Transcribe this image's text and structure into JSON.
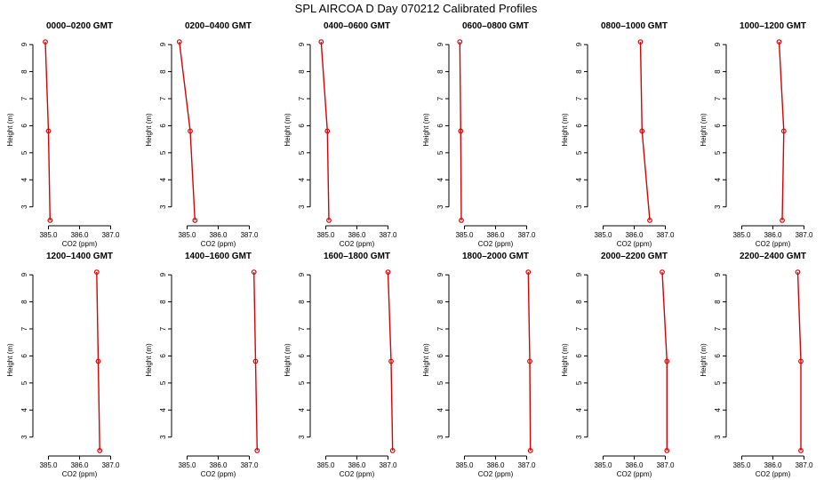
{
  "figure_title": "SPL AIRCOA D  Day 070212  Calibrated Profiles",
  "colors": {
    "profile_line": "#dd0000",
    "profile_marker": "#dd0000",
    "axis": "#000000"
  },
  "chart_data": [
    {
      "type": "line",
      "title": "0000–0200 GMT",
      "xlabel": "CO2 (ppm)",
      "ylabel": "Height (m)",
      "xlim": [
        384.5,
        387.5
      ],
      "ylim": [
        2.3,
        9.4
      ],
      "series": [
        {
          "x": [
            384.9,
            385.0,
            385.05
          ],
          "y": [
            9.1,
            5.8,
            2.5
          ]
        }
      ]
    },
    {
      "type": "line",
      "title": "0200–0400 GMT",
      "xlabel": "CO2 (ppm)",
      "ylabel": "Height (m)",
      "xlim": [
        384.5,
        387.5
      ],
      "ylim": [
        2.3,
        9.4
      ],
      "series": [
        {
          "x": [
            384.75,
            385.1,
            385.25
          ],
          "y": [
            9.1,
            5.8,
            2.5
          ]
        }
      ]
    },
    {
      "type": "line",
      "title": "0400–0600 GMT",
      "xlabel": "CO2 (ppm)",
      "ylabel": "Height (m)",
      "xlim": [
        384.5,
        387.5
      ],
      "ylim": [
        2.3,
        9.4
      ],
      "series": [
        {
          "x": [
            384.85,
            385.05,
            385.1
          ],
          "y": [
            9.1,
            5.8,
            2.5
          ]
        }
      ]
    },
    {
      "type": "line",
      "title": "0600–0800 GMT",
      "xlabel": "CO2 (ppm)",
      "ylabel": "Height (m)",
      "xlim": [
        384.5,
        387.5
      ],
      "ylim": [
        2.3,
        9.4
      ],
      "series": [
        {
          "x": [
            384.85,
            384.88,
            384.9
          ],
          "y": [
            9.1,
            5.8,
            2.5
          ]
        }
      ]
    },
    {
      "type": "line",
      "title": "0800–1000 GMT",
      "xlabel": "CO2 (ppm)",
      "ylabel": "Height (m)",
      "xlim": [
        384.5,
        387.5
      ],
      "ylim": [
        2.3,
        9.4
      ],
      "series": [
        {
          "x": [
            386.2,
            386.25,
            386.5
          ],
          "y": [
            9.1,
            5.8,
            2.5
          ]
        }
      ]
    },
    {
      "type": "line",
      "title": "1000–1200 GMT",
      "xlabel": "CO2 (ppm)",
      "ylabel": "Height (m)",
      "xlim": [
        384.5,
        387.5
      ],
      "ylim": [
        2.3,
        9.4
      ],
      "series": [
        {
          "x": [
            386.2,
            386.35,
            386.3
          ],
          "y": [
            9.1,
            5.8,
            2.5
          ]
        }
      ]
    },
    {
      "type": "line",
      "title": "1200–1400 GMT",
      "xlabel": "CO2 (ppm)",
      "ylabel": "Height (m)",
      "xlim": [
        384.5,
        387.5
      ],
      "ylim": [
        2.3,
        9.4
      ],
      "series": [
        {
          "x": [
            386.55,
            386.6,
            386.65
          ],
          "y": [
            9.1,
            5.8,
            2.5
          ]
        }
      ]
    },
    {
      "type": "line",
      "title": "1400–1600 GMT",
      "xlabel": "CO2 (ppm)",
      "ylabel": "Height (m)",
      "xlim": [
        384.5,
        387.5
      ],
      "ylim": [
        2.3,
        9.4
      ],
      "series": [
        {
          "x": [
            387.15,
            387.2,
            387.25
          ],
          "y": [
            9.1,
            5.8,
            2.5
          ]
        }
      ]
    },
    {
      "type": "line",
      "title": "1600–1800 GMT",
      "xlabel": "CO2 (ppm)",
      "ylabel": "Height (m)",
      "xlim": [
        384.5,
        387.5
      ],
      "ylim": [
        2.3,
        9.4
      ],
      "series": [
        {
          "x": [
            387.0,
            387.1,
            387.15
          ],
          "y": [
            9.1,
            5.8,
            2.5
          ]
        }
      ]
    },
    {
      "type": "line",
      "title": "1800–2000 GMT",
      "xlabel": "CO2 (ppm)",
      "ylabel": "Height (m)",
      "xlim": [
        384.5,
        387.5
      ],
      "ylim": [
        2.3,
        9.4
      ],
      "series": [
        {
          "x": [
            387.05,
            387.1,
            387.12
          ],
          "y": [
            9.1,
            5.8,
            2.5
          ]
        }
      ]
    },
    {
      "type": "line",
      "title": "2000–2200 GMT",
      "xlabel": "CO2 (ppm)",
      "ylabel": "Height (m)",
      "xlim": [
        384.5,
        387.5
      ],
      "ylim": [
        2.3,
        9.4
      ],
      "series": [
        {
          "x": [
            386.9,
            387.05,
            387.05
          ],
          "y": [
            9.1,
            5.8,
            2.5
          ]
        }
      ]
    },
    {
      "type": "line",
      "title": "2200–2400 GMT",
      "xlabel": "CO2 (ppm)",
      "ylabel": "Height (m)",
      "xlim": [
        384.5,
        387.5
      ],
      "ylim": [
        2.3,
        9.4
      ],
      "series": [
        {
          "x": [
            386.8,
            386.9,
            386.9
          ],
          "y": [
            9.1,
            5.8,
            2.5
          ]
        }
      ]
    }
  ],
  "x_ticks": [
    {
      "value": 385.0,
      "label": "385.0"
    },
    {
      "value": 386.0,
      "label": "386.0"
    },
    {
      "value": 387.0,
      "label": "387.0"
    }
  ],
  "y_ticks": [
    {
      "value": 3,
      "label": "3"
    },
    {
      "value": 4,
      "label": "4"
    },
    {
      "value": 5,
      "label": "5"
    },
    {
      "value": 6,
      "label": "6"
    },
    {
      "value": 7,
      "label": "7"
    },
    {
      "value": 8,
      "label": "8"
    },
    {
      "value": 9,
      "label": "9"
    }
  ]
}
